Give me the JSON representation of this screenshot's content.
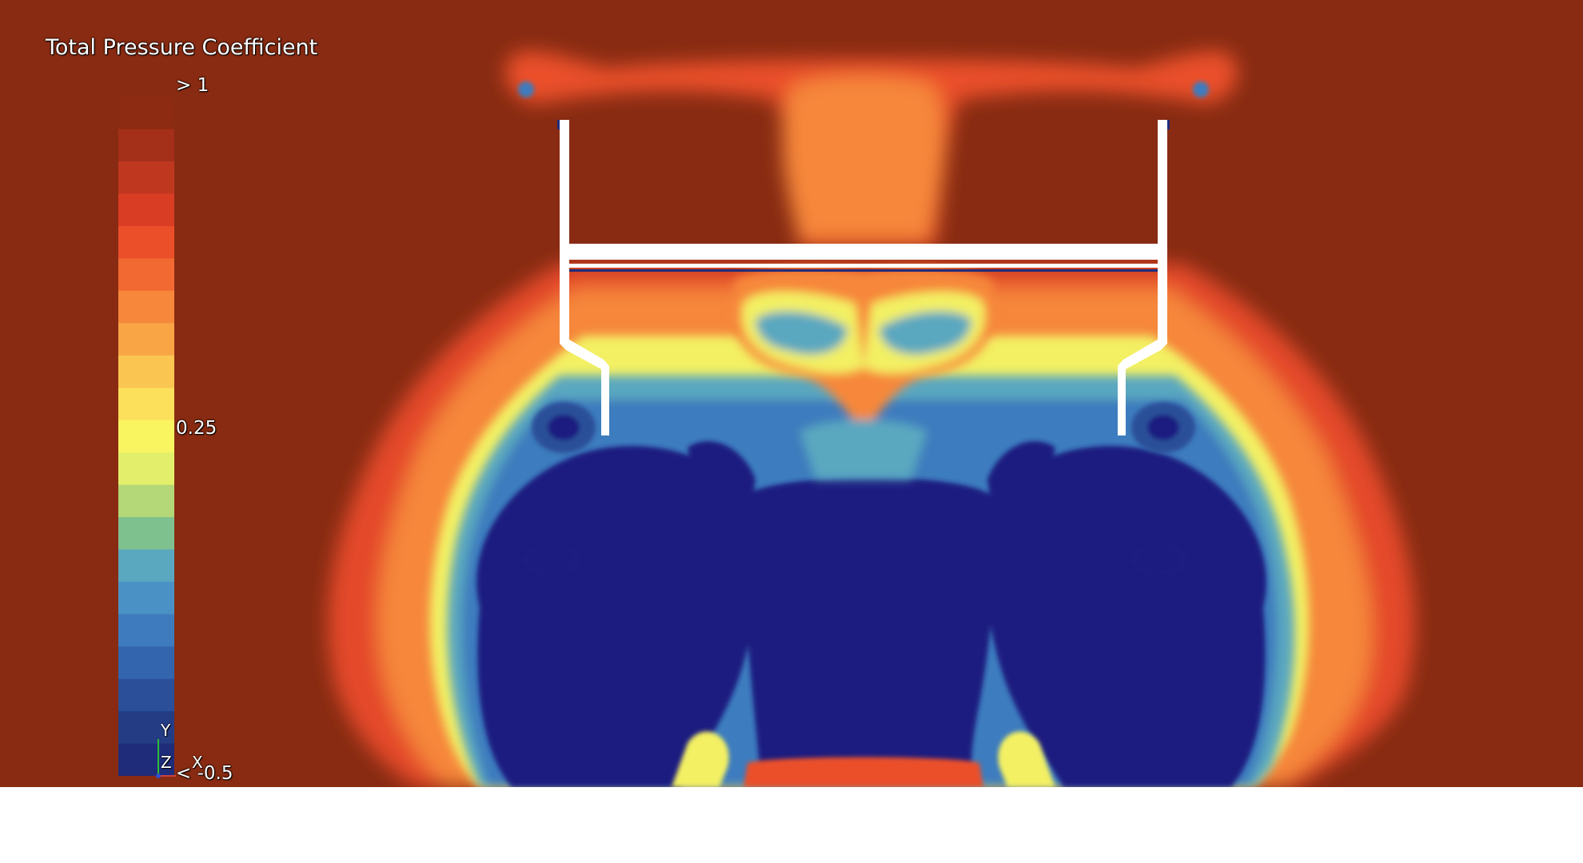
{
  "legend": {
    "title": "Total Pressure Coefficient",
    "max_label": "> 1",
    "mid_label": "0.25",
    "min_label": "< -0.5",
    "bands": [
      "#8c2a12",
      "#a4301a",
      "#c0371f",
      "#d93d24",
      "#ea4f2a",
      "#f26a32",
      "#f6873b",
      "#f9a546",
      "#fbc552",
      "#fcdf5a",
      "#f9f560",
      "#e3ef6a",
      "#b4d877",
      "#7fc08f",
      "#5aa7c0",
      "#4a92c6",
      "#3d7bbe",
      "#3365ae",
      "#2b4f99",
      "#233c84",
      "#1f2c7a"
    ]
  },
  "colors": {
    "background": "#882b12",
    "ring": "#ea4f2a",
    "ring_inner": "#f6873b",
    "yellow": "#f3f063",
    "cyan_blue": "#4a92c6",
    "core_blue": "#1c1e80",
    "geometry": "#ffffff"
  },
  "axes_triad": {
    "y": "Y",
    "z": "Z",
    "x": "X"
  }
}
